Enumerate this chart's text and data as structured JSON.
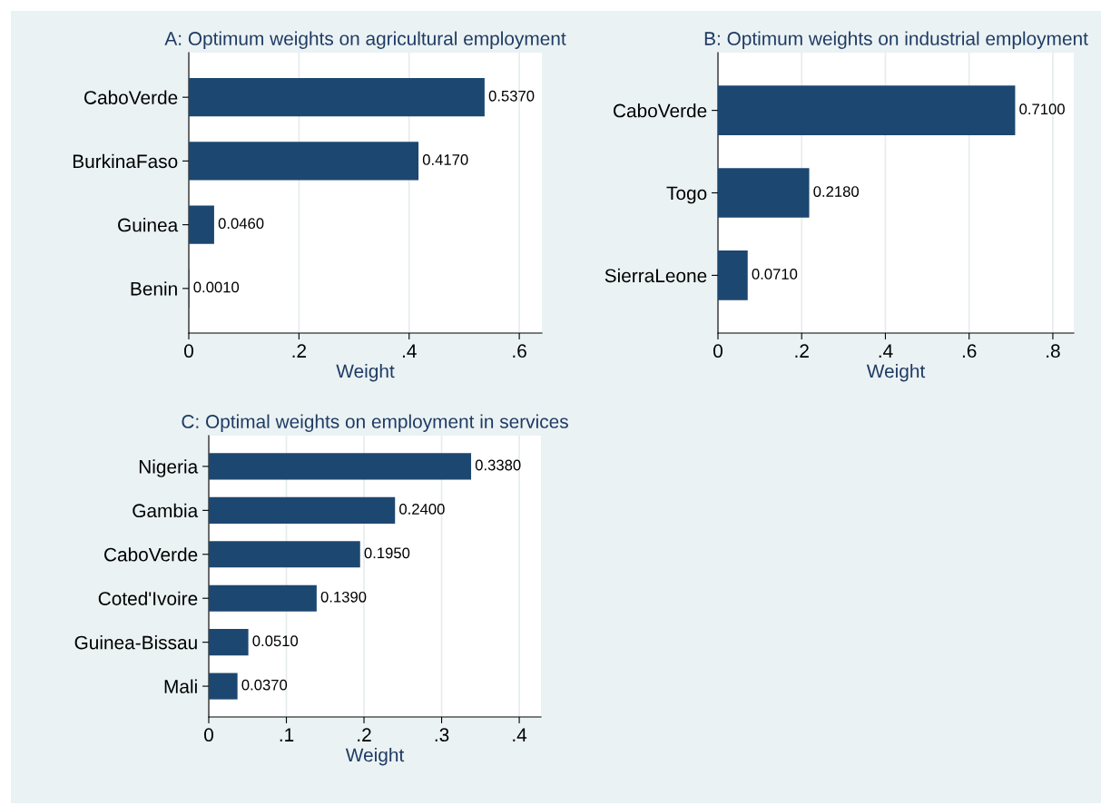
{
  "chart_data": [
    {
      "type": "bar",
      "orientation": "horizontal",
      "title": "A: Optimum weights on agricultural employment",
      "xlabel": "Weight",
      "categories": [
        "CaboVerde",
        "BurkinaFaso",
        "Guinea",
        "Benin"
      ],
      "values": [
        0.537,
        0.417,
        0.046,
        0.001
      ],
      "value_labels": [
        "0.5370",
        "0.4170",
        "0.0460",
        "0.0010"
      ],
      "color": "#1c4770",
      "xlim": [
        0,
        0.641
      ],
      "xticks": [
        0,
        {
          "value": 0.2,
          "label": ".2"
        },
        {
          "value": 0.4,
          "label": ".4"
        },
        {
          "value": 0.6,
          "label": ".6"
        }
      ],
      "grid": "x"
    },
    {
      "type": "bar",
      "orientation": "horizontal",
      "title": "B: Optimum weights on industrial employment",
      "xlabel": "Weight",
      "categories": [
        "CaboVerde",
        "Togo",
        "SierraLeone"
      ],
      "values": [
        0.71,
        0.218,
        0.071
      ],
      "value_labels": [
        "0.7100",
        "0.2180",
        "0.0710"
      ],
      "color": "#1c4770",
      "xlim": [
        0,
        0.85
      ],
      "xticks": [
        0,
        {
          "value": 0.2,
          "label": ".2"
        },
        {
          "value": 0.4,
          "label": ".4"
        },
        {
          "value": 0.6,
          "label": ".6"
        },
        {
          "value": 0.8,
          "label": ".8"
        }
      ],
      "grid": "x"
    },
    {
      "type": "bar",
      "orientation": "horizontal",
      "title": "C: Optimal weights on employment in services",
      "xlabel": "Weight",
      "categories": [
        "Nigeria",
        "Gambia",
        "CaboVerde",
        "Coted'Ivoire",
        "Guinea-Bissau",
        "Mali"
      ],
      "values": [
        0.338,
        0.24,
        0.195,
        0.139,
        0.051,
        0.037
      ],
      "value_labels": [
        "0.3380",
        "0.2400",
        "0.1950",
        "0.1390",
        "0.0510",
        "0.0370"
      ],
      "color": "#1c4770",
      "xlim": [
        0,
        0.428
      ],
      "xticks": [
        0,
        {
          "value": 0.1,
          "label": ".1"
        },
        {
          "value": 0.2,
          "label": ".2"
        },
        {
          "value": 0.3,
          "label": ".3"
        },
        {
          "value": 0.4,
          "label": ".4"
        }
      ],
      "grid": "x"
    }
  ]
}
